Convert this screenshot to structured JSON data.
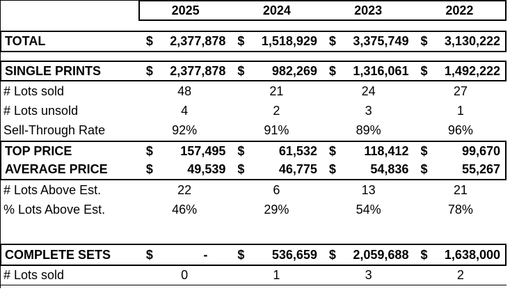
{
  "currency": "$",
  "years": [
    "2025",
    "2024",
    "2023",
    "2022"
  ],
  "rows": [
    {
      "label": "TOTAL",
      "values": [
        "2,377,878",
        "1,518,929",
        "3,375,749",
        "3,130,222"
      ]
    },
    {
      "label": "SINGLE PRINTS",
      "values": [
        "2,377,878",
        "982,269",
        "1,316,061",
        "1,492,222"
      ]
    },
    {
      "label": "# Lots sold",
      "values": [
        "48",
        "21",
        "24",
        "27"
      ]
    },
    {
      "label": "# Lots unsold",
      "values": [
        "4",
        "2",
        "3",
        "1"
      ]
    },
    {
      "label": "Sell-Through Rate",
      "values": [
        "92%",
        "91%",
        "89%",
        "96%"
      ]
    },
    {
      "label": "TOP PRICE",
      "values": [
        "157,495",
        "61,532",
        "118,412",
        "99,670"
      ]
    },
    {
      "label": "AVERAGE PRICE",
      "values": [
        "49,539",
        "46,775",
        "54,836",
        "55,267"
      ]
    },
    {
      "label": "# Lots Above Est.",
      "values": [
        "22",
        "6",
        "13",
        "21"
      ]
    },
    {
      "label": "% Lots Above Est.",
      "values": [
        "46%",
        "29%",
        "54%",
        "78%"
      ]
    },
    {
      "label": "COMPLETE SETS",
      "values": [
        "-",
        "536,659",
        "2,059,688",
        "1,638,000"
      ]
    },
    {
      "label": "# Lots sold",
      "values": [
        "0",
        "1",
        "3",
        "2"
      ]
    }
  ],
  "colors": {
    "border": "#000000",
    "background": "#ffffff",
    "text": "#000000"
  }
}
